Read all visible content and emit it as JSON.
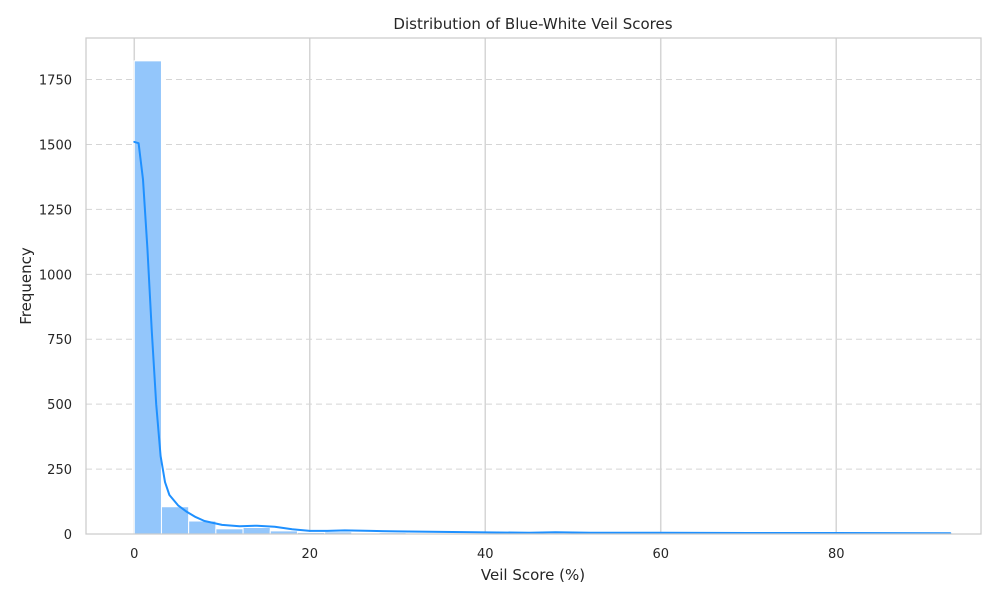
{
  "chart_data": {
    "type": "bar",
    "title": "Distribution of Blue-White Veil Scores",
    "xlabel": "Veil Score (%)",
    "ylabel": "Frequency",
    "xlim": [
      -5.5,
      96.5
    ],
    "ylim": [
      0,
      1910
    ],
    "xticks": [
      0,
      20,
      40,
      60,
      80
    ],
    "yticks": [
      0,
      250,
      500,
      750,
      1000,
      1250,
      1500,
      1750
    ],
    "grid": true,
    "legend": false,
    "bin_edges": [
      0,
      3.1,
      6.2,
      9.3,
      12.4,
      15.5,
      18.6,
      21.7,
      24.8,
      27.9,
      31.0,
      34.1,
      37.2,
      40.3,
      43.4,
      46.5,
      49.6,
      52.7,
      55.8,
      58.9,
      62.0,
      65.1,
      68.2,
      71.3,
      74.4,
      77.5,
      80.6,
      83.7,
      86.8,
      89.9,
      93.0
    ],
    "values": [
      1822,
      105,
      50,
      20,
      25,
      12,
      6,
      8,
      4,
      5,
      3,
      3,
      3,
      5,
      2,
      1,
      3,
      1,
      2,
      1,
      2,
      0,
      1,
      1,
      1,
      0,
      1,
      0,
      1,
      1
    ],
    "kde": {
      "x": [
        0.0,
        0.5,
        1.0,
        1.5,
        2.0,
        2.5,
        3.0,
        3.5,
        4.0,
        5.0,
        6.0,
        7.0,
        8.0,
        10.0,
        12.0,
        14.0,
        16.0,
        18.0,
        20.0,
        22.0,
        24.0,
        27.0,
        30.0,
        35.0,
        40.0,
        45.0,
        48.0,
        52.0,
        60.0,
        70.0,
        80.0,
        93.0
      ],
      "y": [
        1510,
        1505,
        1365,
        1100,
        780,
        500,
        300,
        200,
        150,
        110,
        85,
        65,
        50,
        35,
        30,
        32,
        28,
        18,
        12,
        12,
        14,
        12,
        10,
        8,
        6,
        5,
        7,
        5,
        5,
        4,
        4,
        3
      ]
    },
    "colors": {
      "bar_fill": "#93c6fb",
      "bar_edge": "#ffffff",
      "kde_line": "#1e90ff",
      "grid": "#d5d5d5",
      "axes_edge": "#cccccc",
      "text": "#262626"
    }
  }
}
